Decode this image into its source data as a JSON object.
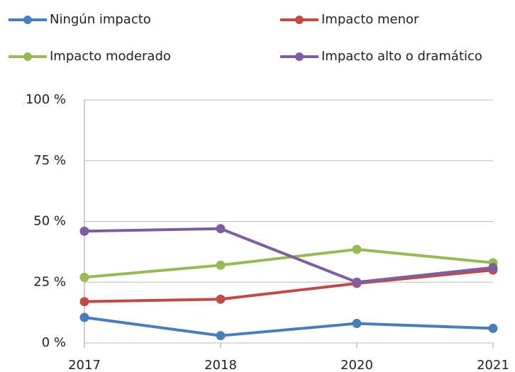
{
  "chart_data": {
    "type": "line",
    "categories": [
      "2017",
      "2018",
      "2020",
      "2021"
    ],
    "series": [
      {
        "name": "Ningún impacto",
        "color": "#4a7ebb",
        "values": [
          10.5,
          3,
          8,
          6
        ]
      },
      {
        "name": "Impacto menor",
        "color": "#be4b48",
        "values": [
          17,
          18,
          24.5,
          30
        ]
      },
      {
        "name": "Impacto moderado",
        "color": "#98b954",
        "values": [
          27,
          32,
          38.5,
          33
        ]
      },
      {
        "name": "Impacto alto o dramático",
        "color": "#7d5fa0",
        "values": [
          46,
          47,
          25,
          31
        ]
      }
    ],
    "ylim": [
      0,
      100
    ],
    "yticks": [
      {
        "value": 0,
        "label": "0 %"
      },
      {
        "value": 25,
        "label": "25 %"
      },
      {
        "value": 50,
        "label": "50 %"
      },
      {
        "value": 75,
        "label": "75 %"
      },
      {
        "value": 100,
        "label": "100 %"
      }
    ],
    "grid": true
  }
}
